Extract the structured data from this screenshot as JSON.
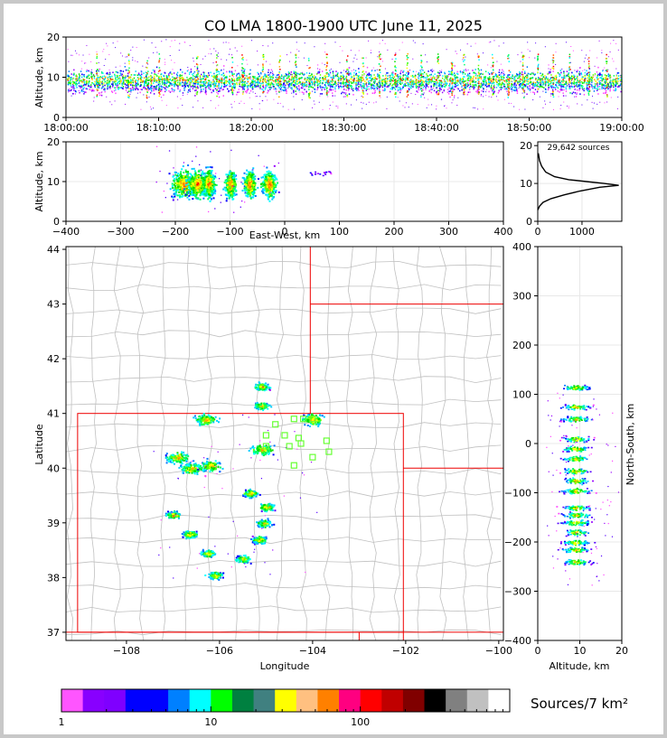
{
  "chart_data": [
    {
      "panel": "time-altitude",
      "type": "scatter",
      "title": "CO LMA 1800-1900 UTC June 11, 2025",
      "ylabel": "Altitude, km",
      "ylim": [
        0,
        20
      ],
      "y_ticks": [
        "0",
        "10",
        "20"
      ],
      "x_ticks": [
        "18:00:00",
        "18:10:00",
        "18:20:00",
        "18:30:00",
        "18:40:00",
        "18:50:00",
        "19:00:00"
      ],
      "x_minutes_range": [
        0,
        60
      ],
      "burst_minutes": [
        3.3,
        6.7,
        8.7,
        10.0,
        14.1,
        16.2,
        17.9,
        19.0,
        21.2,
        23.0,
        24.7,
        26.2,
        28.1,
        30.3,
        32.0,
        33.8,
        35.5,
        36.8,
        38.3,
        40.1,
        41.6,
        42.9,
        44.5,
        46.0,
        47.7,
        49.3,
        50.9,
        52.5,
        54.3,
        56.4,
        58.3
      ]
    },
    {
      "panel": "east-west-altitude",
      "type": "heatmap",
      "xlabel": "East-West, km",
      "ylabel": "Altitude, km",
      "xlim": [
        -400,
        400
      ],
      "ylim": [
        0,
        20
      ],
      "x_ticks": [
        "−400",
        "−300",
        "−200",
        "−100",
        "0",
        "100",
        "200",
        "300",
        "400"
      ],
      "y_ticks": [
        "0",
        "10",
        "20"
      ],
      "clusters_x_km": [
        -185,
        -160,
        -140,
        -100,
        -65,
        -30
      ]
    },
    {
      "panel": "altitude-histogram",
      "type": "line",
      "annotation": "29,642 sources",
      "xlim": [
        0,
        1900
      ],
      "ylim": [
        0,
        21
      ],
      "x_ticks": [
        "0",
        "1000"
      ],
      "y_ticks": [
        "0",
        "10",
        "20"
      ],
      "profile": [
        [
          0,
          3
        ],
        [
          40,
          4
        ],
        [
          120,
          5
        ],
        [
          300,
          6
        ],
        [
          600,
          7
        ],
        [
          950,
          8
        ],
        [
          1400,
          9
        ],
        [
          1830,
          9.5
        ],
        [
          1500,
          10
        ],
        [
          1100,
          10.5
        ],
        [
          700,
          11
        ],
        [
          380,
          11.8
        ],
        [
          180,
          13
        ],
        [
          90,
          14.5
        ],
        [
          40,
          16
        ],
        [
          12,
          18
        ]
      ]
    },
    {
      "panel": "plan-view",
      "type": "heatmap",
      "xlabel": "Longitude",
      "ylabel": "Latitude",
      "xlim": [
        -109.3,
        -99.9
      ],
      "ylim": [
        36.85,
        44.05
      ],
      "x_ticks": [
        "−108",
        "−106",
        "−104",
        "−102",
        "−100"
      ],
      "y_ticks": [
        "37",
        "38",
        "39",
        "40",
        "41",
        "42",
        "43",
        "44"
      ],
      "stations": [
        [
          -104.8,
          40.8
        ],
        [
          -104.4,
          40.9
        ],
        [
          -104.0,
          40.9
        ],
        [
          -105.0,
          40.6
        ],
        [
          -104.6,
          40.6
        ],
        [
          -104.3,
          40.55
        ],
        [
          -104.5,
          40.4
        ],
        [
          -104.25,
          40.45
        ],
        [
          -105.0,
          40.4
        ],
        [
          -103.7,
          40.5
        ],
        [
          -103.65,
          40.3
        ],
        [
          -104.0,
          40.2
        ],
        [
          -104.4,
          40.05
        ],
        [
          -104.2,
          40.9
        ]
      ],
      "cells": [
        [
          -106.3,
          40.9
        ],
        [
          -104.0,
          40.9
        ],
        [
          -106.9,
          40.2
        ],
        [
          -106.6,
          40.0
        ],
        [
          -106.2,
          40.05
        ],
        [
          -105.1,
          40.35
        ],
        [
          -105.35,
          39.55
        ],
        [
          -105.0,
          39.3
        ],
        [
          -105.05,
          39.0
        ],
        [
          -105.15,
          38.7
        ],
        [
          -106.25,
          38.45
        ],
        [
          -105.5,
          38.35
        ],
        [
          -106.65,
          38.8
        ],
        [
          -107.0,
          39.15
        ],
        [
          -106.1,
          38.05
        ],
        [
          -105.1,
          41.15
        ],
        [
          -105.1,
          41.5
        ]
      ]
    },
    {
      "panel": "altitude-north-south",
      "type": "heatmap",
      "xlabel": "Altitude, km",
      "ylabel": "North-South, km",
      "xlim": [
        0,
        20
      ],
      "ylim": [
        -400,
        400
      ],
      "x_ticks": [
        "0",
        "10",
        "20"
      ],
      "y_ticks": [
        "−400",
        "−300",
        "−200",
        "−100",
        "0",
        "100",
        "200",
        "300",
        "400"
      ],
      "bands_ns_km": [
        115,
        75,
        50,
        10,
        -10,
        -30,
        -55,
        -75,
        -95,
        -130,
        -145,
        -160,
        -180,
        -200,
        -215,
        -240
      ]
    }
  ],
  "colorbar": {
    "label": "Sources/7 km²",
    "tick_labels": [
      "1",
      "10",
      "100"
    ],
    "colors": [
      "#ff55ff",
      "#8800ff",
      "#7f00ff",
      "#0000ff",
      "#0000ff",
      "#0080ff",
      "#00ffff",
      "#00ff00",
      "#008040",
      "#408080",
      "#ffff00",
      "#ffc080",
      "#ff8000",
      "#ff0080",
      "#ff0000",
      "#c00000",
      "#800000",
      "#000000",
      "#808080",
      "#c0c0c0",
      "#ffffff"
    ]
  }
}
